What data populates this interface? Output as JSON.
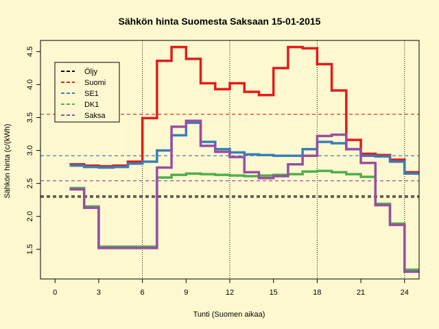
{
  "chart_data": {
    "type": "line",
    "title": "Sähkön hinta Suomesta Saksaan 15-01-2015",
    "xlabel": "Tunti (Suomen aikaa)",
    "ylabel": "Sähkön hinta (c/(kWh)",
    "xlim": [
      -1,
      25
    ],
    "ylim": [
      1.05,
      4.67
    ],
    "xticks": [
      0,
      3,
      6,
      9,
      12,
      15,
      18,
      21,
      24
    ],
    "yticks": [
      1.5,
      2.0,
      2.5,
      3.0,
      3.5,
      4.0,
      4.5
    ],
    "vlines": [
      6,
      12,
      18,
      24
    ],
    "legend_position": "top-left",
    "hlines": [
      {
        "name": "Öljy",
        "value": 2.29,
        "color": "#000000"
      },
      {
        "name": "Öljy",
        "value": 2.31,
        "color": "#000000"
      },
      {
        "name": "Suomi",
        "value": 3.55,
        "color": "#e41a1c"
      },
      {
        "name": "SE1",
        "value": 2.92,
        "color": "#377eb8"
      },
      {
        "name": "Saksa",
        "value": 2.54,
        "color": "#984ea3"
      }
    ],
    "legend": [
      {
        "name": "Öljy",
        "color": "#000000"
      },
      {
        "name": "Suomi",
        "color": "#e41a1c"
      },
      {
        "name": "SE1",
        "color": "#377eb8"
      },
      {
        "name": "DK1",
        "color": "#4daf4a"
      },
      {
        "name": "Saksa",
        "color": "#984ea3"
      }
    ],
    "x": [
      1,
      2,
      3,
      4,
      5,
      6,
      7,
      8,
      9,
      10,
      11,
      12,
      13,
      14,
      15,
      16,
      17,
      18,
      19,
      20,
      21,
      22,
      23,
      24
    ],
    "series": [
      {
        "name": "Suomi",
        "color": "#e41a1c",
        "values": [
          2.79,
          2.77,
          2.76,
          2.77,
          2.83,
          3.49,
          4.36,
          4.57,
          4.39,
          4.02,
          3.93,
          4.02,
          3.89,
          3.84,
          4.25,
          4.57,
          4.55,
          4.31,
          3.91,
          3.16,
          2.95,
          2.93,
          2.86,
          2.67
        ]
      },
      {
        "name": "SE1",
        "color": "#377eb8",
        "values": [
          2.77,
          2.75,
          2.74,
          2.75,
          2.8,
          2.83,
          3.0,
          3.23,
          3.42,
          3.13,
          3.02,
          2.97,
          2.94,
          2.93,
          2.92,
          2.92,
          3.02,
          3.13,
          3.11,
          3.02,
          2.92,
          2.91,
          2.83,
          2.65
        ]
      },
      {
        "name": "DK1",
        "color": "#4daf4a",
        "values": [
          2.43,
          2.15,
          1.54,
          1.54,
          1.54,
          1.54,
          2.59,
          2.63,
          2.65,
          2.64,
          2.63,
          2.62,
          2.61,
          2.62,
          2.63,
          2.64,
          2.68,
          2.69,
          2.67,
          2.64,
          2.6,
          2.19,
          1.89,
          1.19
        ]
      },
      {
        "name": "Saksa",
        "color": "#984ea3",
        "values": [
          2.41,
          2.13,
          1.52,
          1.52,
          1.52,
          1.52,
          2.74,
          3.36,
          3.45,
          3.07,
          2.98,
          2.9,
          2.67,
          2.58,
          2.61,
          2.79,
          2.92,
          3.22,
          3.24,
          3.02,
          2.81,
          2.17,
          1.87,
          1.16
        ]
      }
    ]
  }
}
